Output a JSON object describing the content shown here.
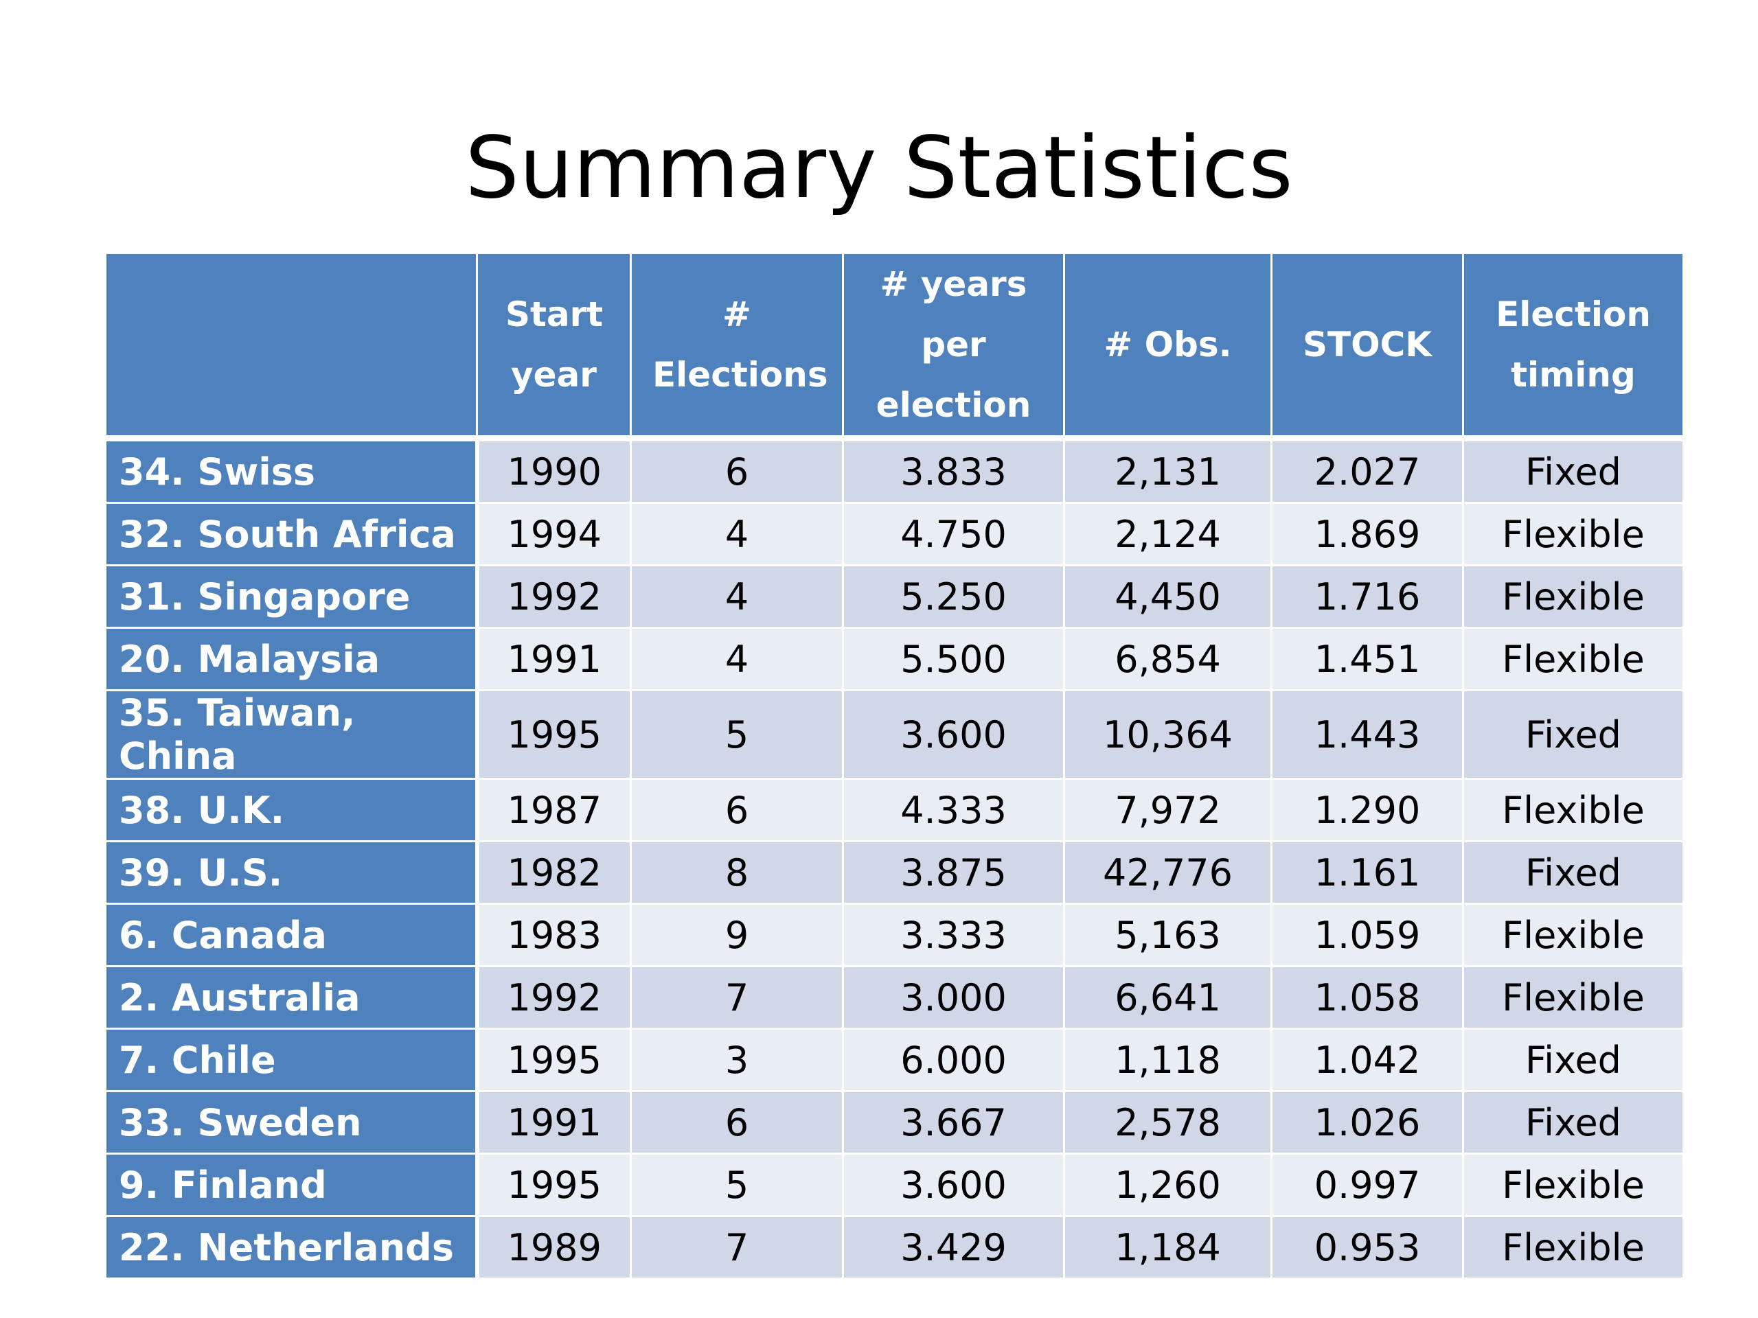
{
  "title": "Summary Statistics",
  "table": {
    "headers": [
      "",
      "Start year",
      "# Elections",
      "# years per election",
      "# Obs.",
      "STOCK",
      "Election timing"
    ],
    "rows": [
      {
        "label": "34. Swiss",
        "start_year": "1990",
        "elections": "6",
        "years_per_election": "3.833",
        "obs": "2,131",
        "stock": "2.027",
        "timing": "Fixed"
      },
      {
        "label": "32. South Africa",
        "start_year": "1994",
        "elections": "4",
        "years_per_election": "4.750",
        "obs": "2,124",
        "stock": "1.869",
        "timing": "Flexible"
      },
      {
        "label": "31. Singapore",
        "start_year": "1992",
        "elections": "4",
        "years_per_election": "5.250",
        "obs": "4,450",
        "stock": "1.716",
        "timing": "Flexible"
      },
      {
        "label": "20. Malaysia",
        "start_year": "1991",
        "elections": "4",
        "years_per_election": "5.500",
        "obs": "6,854",
        "stock": "1.451",
        "timing": "Flexible"
      },
      {
        "label": "35. Taiwan, China",
        "start_year": "1995",
        "elections": "5",
        "years_per_election": "3.600",
        "obs": "10,364",
        "stock": "1.443",
        "timing": "Fixed"
      },
      {
        "label": "38. U.K.",
        "start_year": "1987",
        "elections": "6",
        "years_per_election": "4.333",
        "obs": "7,972",
        "stock": "1.290",
        "timing": "Flexible"
      },
      {
        "label": "39. U.S.",
        "start_year": "1982",
        "elections": "8",
        "years_per_election": "3.875",
        "obs": "42,776",
        "stock": "1.161",
        "timing": "Fixed"
      },
      {
        "label": "6. Canada",
        "start_year": "1983",
        "elections": "9",
        "years_per_election": "3.333",
        "obs": "5,163",
        "stock": "1.059",
        "timing": "Flexible"
      },
      {
        "label": "2. Australia",
        "start_year": "1992",
        "elections": "7",
        "years_per_election": "3.000",
        "obs": "6,641",
        "stock": "1.058",
        "timing": "Flexible"
      },
      {
        "label": "7. Chile",
        "start_year": "1995",
        "elections": "3",
        "years_per_election": "6.000",
        "obs": "1,118",
        "stock": "1.042",
        "timing": "Fixed"
      },
      {
        "label": "33. Sweden",
        "start_year": "1991",
        "elections": "6",
        "years_per_election": "3.667",
        "obs": "2,578",
        "stock": "1.026",
        "timing": "Fixed"
      },
      {
        "label": "9. Finland",
        "start_year": "1995",
        "elections": "5",
        "years_per_election": "3.600",
        "obs": "1,260",
        "stock": "0.997",
        "timing": "Flexible"
      },
      {
        "label": "22. Netherlands",
        "start_year": "1989",
        "elections": "7",
        "years_per_election": "3.429",
        "obs": "1,184",
        "stock": "0.953",
        "timing": "Flexible"
      }
    ]
  },
  "colors": {
    "header_fill": "#4f81bd",
    "row_band_dark": "#d0d8e8",
    "row_band_light": "#e9edf4",
    "header_text": "#ffffff"
  }
}
